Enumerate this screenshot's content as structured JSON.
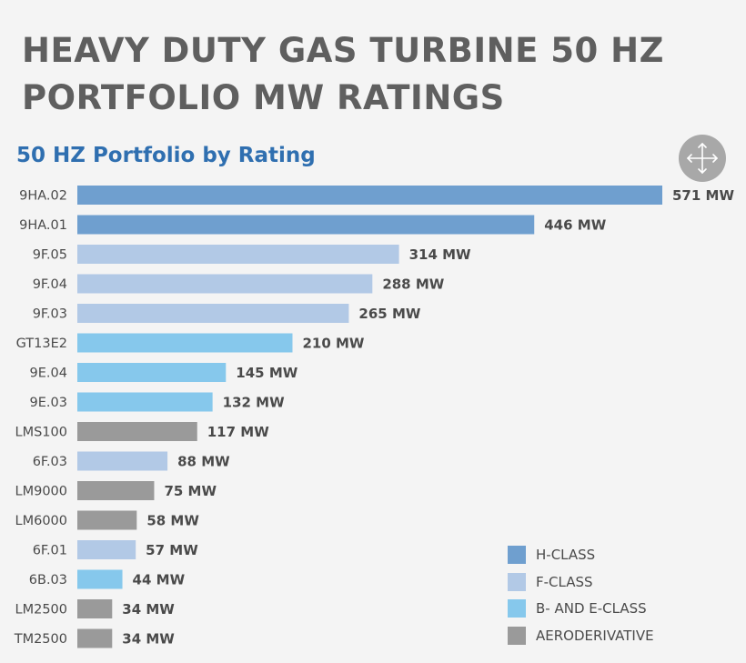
{
  "title_lines": [
    "HEAVY DUTY GAS TURBINE 50 HZ",
    "PORTFOLIO MW RATINGS"
  ],
  "subtitle": "50 HZ Portfolio by Rating",
  "expand_icon": "move-arrows-icon",
  "colors": {
    "H-CLASS": "#6f9fcf",
    "F-CLASS": "#b2c9e6",
    "B- AND E-CLASS": "#86c8ec",
    "AERODERIVATIVE": "#9a9a9a"
  },
  "chart_data": {
    "type": "bar",
    "orientation": "horizontal",
    "title": "50 HZ Portfolio by Rating",
    "unit": "MW",
    "categories": [
      "9HA.02",
      "9HA.01",
      "9F.05",
      "9F.04",
      "9F.03",
      "GT13E2",
      "9E.04",
      "9E.03",
      "LMS100",
      "6F.03",
      "LM9000",
      "LM6000",
      "6F.01",
      "6B.03",
      "LM2500",
      "TM2500"
    ],
    "values": [
      571,
      446,
      314,
      288,
      265,
      210,
      145,
      132,
      117,
      88,
      75,
      58,
      57,
      44,
      34,
      34
    ],
    "value_labels": [
      "571 MW",
      "446 MW",
      "314 MW",
      "288 MW",
      "265 MW",
      "210 MW",
      "145 MW",
      "132 MW",
      "117 MW",
      "88 MW",
      "75 MW",
      "58 MW",
      "57 MW",
      "44 MW",
      "34 MW",
      "34 MW"
    ],
    "classes": [
      "H-CLASS",
      "H-CLASS",
      "F-CLASS",
      "F-CLASS",
      "F-CLASS",
      "B- AND E-CLASS",
      "B- AND E-CLASS",
      "B- AND E-CLASS",
      "AERODERIVATIVE",
      "F-CLASS",
      "AERODERIVATIVE",
      "AERODERIVATIVE",
      "F-CLASS",
      "B- AND E-CLASS",
      "AERODERIVATIVE",
      "AERODERIVATIVE"
    ],
    "xlim": [
      0,
      571
    ],
    "grid": false,
    "legend_placement": "bottom-right",
    "legend": [
      "H-CLASS",
      "F-CLASS",
      "B- AND E-CLASS",
      "AERODERIVATIVE"
    ]
  }
}
